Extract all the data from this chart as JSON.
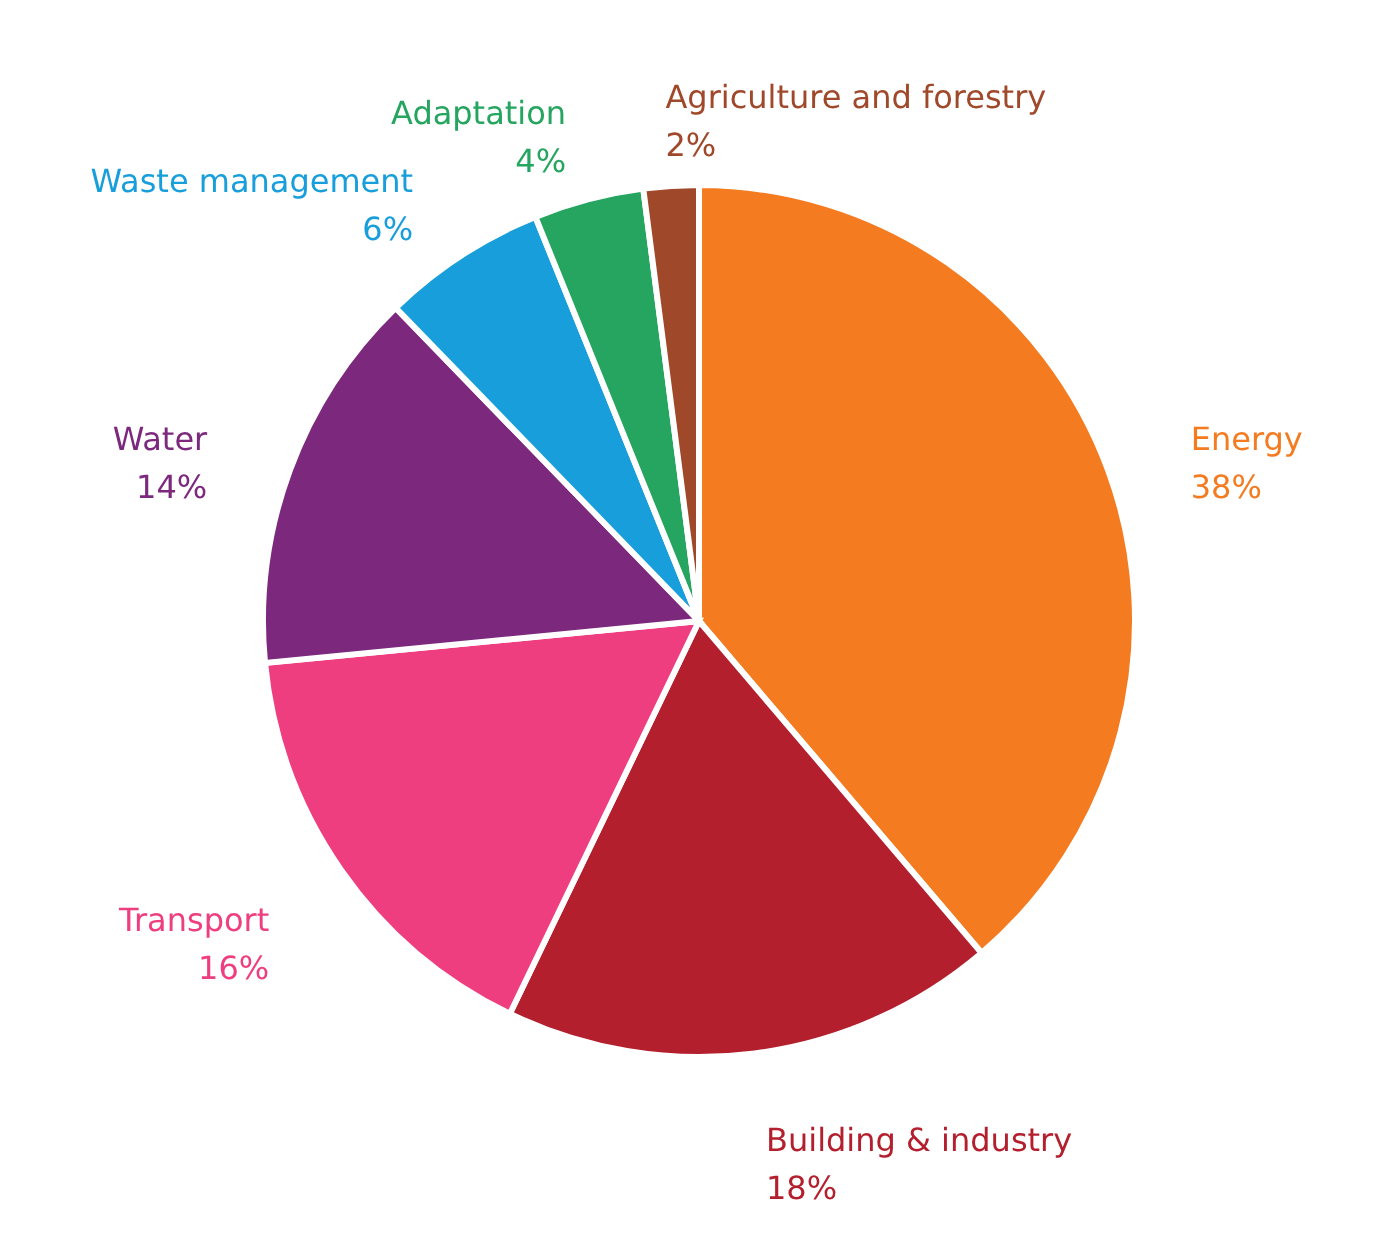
{
  "chart_data": {
    "type": "pie",
    "categories": [
      "Energy",
      "Building & industry",
      "Transport",
      "Water",
      "Waste management",
      "Adaptation",
      "Agriculture and forestry"
    ],
    "values": [
      38,
      18,
      16,
      14,
      6,
      4,
      2
    ],
    "value_labels": [
      "38%",
      "18%",
      "16%",
      "14%",
      "6%",
      "4%",
      "2%"
    ],
    "colors": [
      "#f47b20",
      "#b41f2e",
      "#ef3e7f",
      "#7b287d",
      "#189fdb",
      "#25a55f",
      "#a0492a"
    ]
  }
}
